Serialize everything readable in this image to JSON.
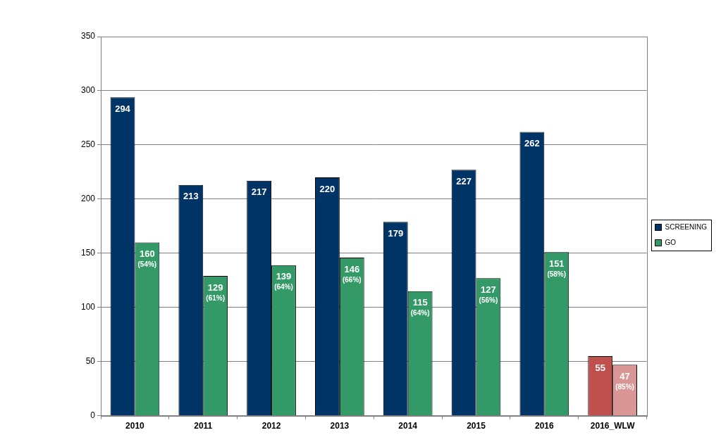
{
  "chart_data": {
    "type": "bar",
    "categories": [
      "2010",
      "2011",
      "2012",
      "2013",
      "2014",
      "2015",
      "2016",
      "2016_WLW"
    ],
    "series": [
      {
        "name": "SCREENING",
        "color": "#003366",
        "colors": [
          "#003366",
          "#003366",
          "#003366",
          "#003366",
          "#003366",
          "#003366",
          "#003366",
          "#c0504d"
        ],
        "values": [
          294,
          213,
          217,
          220,
          179,
          227,
          262,
          55
        ]
      },
      {
        "name": "GO",
        "color": "#339966",
        "colors": [
          "#339966",
          "#339966",
          "#339966",
          "#339966",
          "#339966",
          "#339966",
          "#339966",
          "#d99694"
        ],
        "values": [
          160,
          129,
          139,
          146,
          115,
          127,
          151,
          47
        ],
        "value_labels": [
          [
            "160",
            "(54%)"
          ],
          [
            "129",
            "(61%)"
          ],
          [
            "139",
            "(64%)"
          ],
          [
            "146",
            "(66%)"
          ],
          [
            "115",
            "(64%)"
          ],
          [
            "127",
            "(56%)"
          ],
          [
            "151",
            "(58%)"
          ],
          [
            "47",
            "(85%)"
          ]
        ]
      }
    ],
    "ylim": [
      0,
      350
    ],
    "yticks": [
      0,
      50,
      100,
      150,
      200,
      250,
      300,
      350
    ],
    "grid": true,
    "legend": "right",
    "data_labels": true
  }
}
